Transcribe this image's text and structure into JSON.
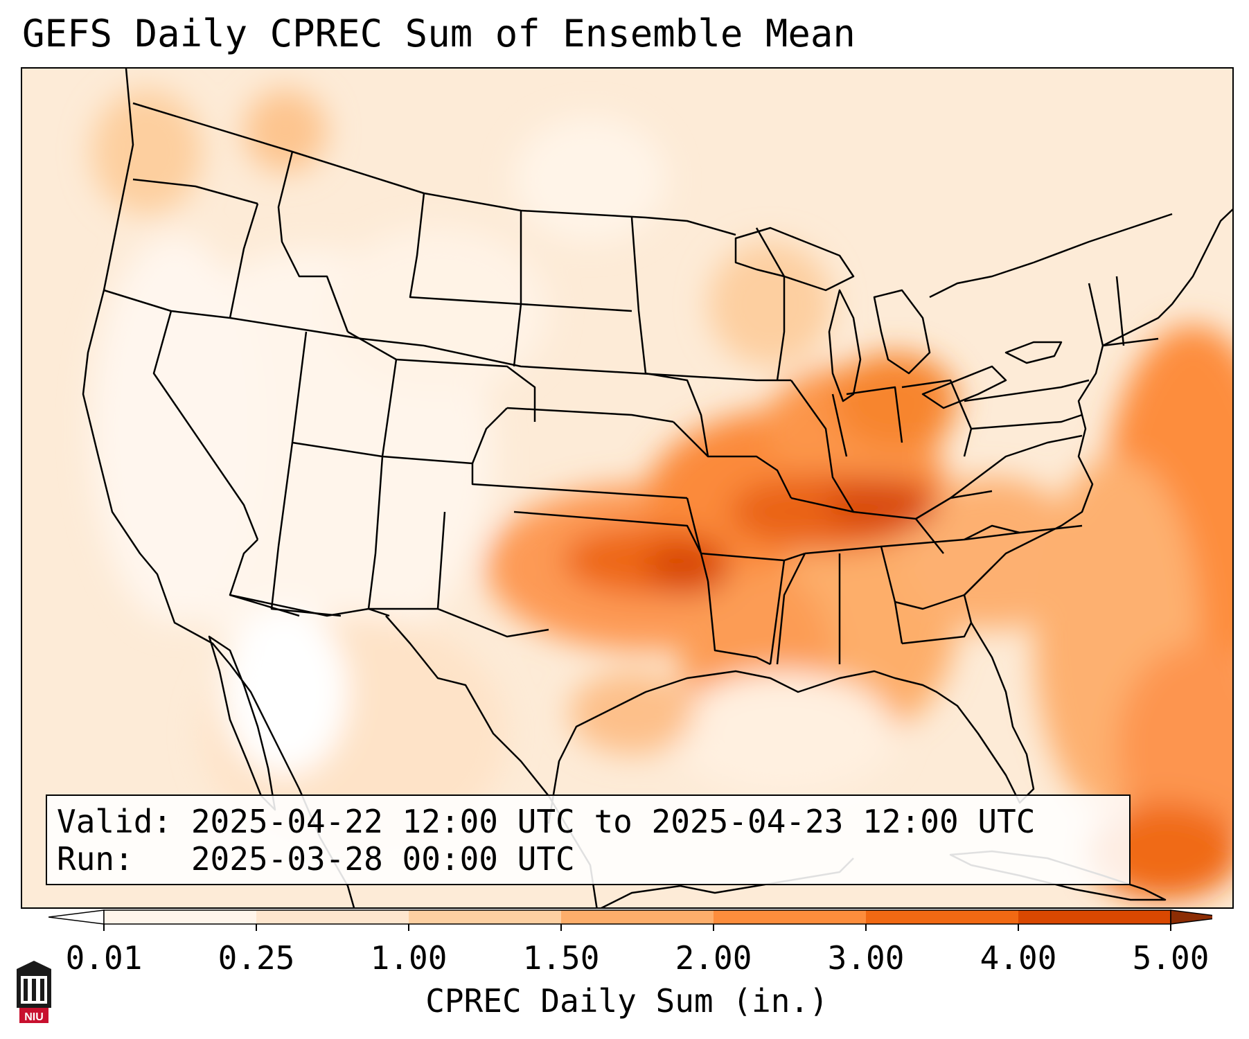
{
  "title": "GEFS Daily CPREC Sum of Ensemble Mean",
  "info": {
    "valid_line": "Valid: 2025-04-22 12:00 UTC to 2025-04-23 12:00 UTC",
    "run_line": "Run:   2025-03-28 00:00 UTC"
  },
  "colorbar": {
    "label": "CPREC Daily Sum (in.)",
    "levels": [
      "0.01",
      "0.25",
      "1.00",
      "1.50",
      "2.00",
      "3.00",
      "4.00",
      "5.00"
    ],
    "colors": [
      "#fff5eb",
      "#fee6ce",
      "#fdd0a2",
      "#fdae6b",
      "#fd8d3c",
      "#f16913",
      "#d94801",
      "#8c2d04"
    ],
    "under_color": "#ffffff",
    "over_color": "#8c2d04"
  },
  "logo_text": "NIU",
  "map": {
    "projection": "conic",
    "region": "Contiguous United States",
    "max_precip_area": "Tennessee / Kentucky / Oklahoma"
  }
}
